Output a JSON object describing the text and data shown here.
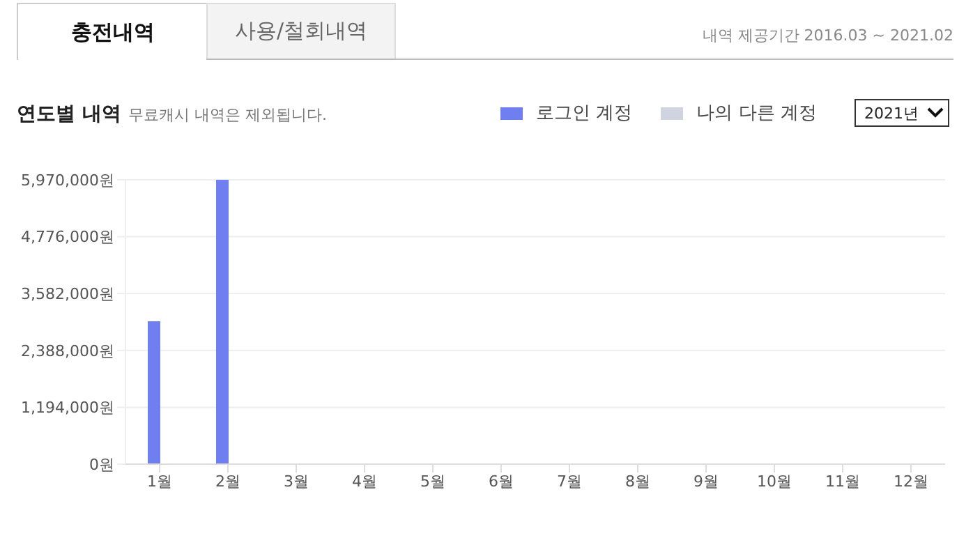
{
  "chart_data": {
    "type": "bar",
    "title": "연도별 내역",
    "subtitle": "무료캐시 내역은 제외됩니다.",
    "annotations": [
      "충전내역",
      "사용/철회내역",
      "내역 제공기간 2016.03 ~ 2021.02",
      "2021년"
    ],
    "categories": [
      "1월",
      "2월",
      "3월",
      "4월",
      "5월",
      "6월",
      "7월",
      "8월",
      "9월",
      "10월",
      "11월",
      "12월"
    ],
    "series": [
      {
        "name": "로그인 계정",
        "color": "#6f7fef",
        "values": [
          3000000,
          5970000,
          0,
          0,
          0,
          0,
          0,
          0,
          0,
          0,
          0,
          0
        ]
      },
      {
        "name": "나의 다른 계정",
        "color": "#d0d3e0",
        "values": [
          0,
          0,
          0,
          0,
          0,
          0,
          0,
          0,
          0,
          0,
          0,
          0
        ]
      }
    ],
    "ylim": [
      0,
      5970000
    ],
    "yticks": [
      {
        "value": 0,
        "label": "0원"
      },
      {
        "value": 1194000,
        "label": "1,194,000원"
      },
      {
        "value": 2388000,
        "label": "2,388,000원"
      },
      {
        "value": 3582000,
        "label": "3,582,000원"
      },
      {
        "value": 4776000,
        "label": "4,776,000원"
      },
      {
        "value": 5970000,
        "label": "5,970,000원"
      }
    ],
    "grid": "y",
    "legend": "top right"
  }
}
